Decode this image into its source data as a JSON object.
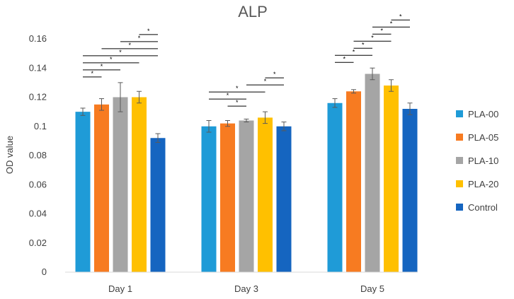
{
  "chart_data": {
    "type": "bar",
    "title": "ALP",
    "xlabel": "",
    "ylabel": "OD value",
    "ylim": [
      0,
      0.16
    ],
    "yticks": [
      0,
      0.02,
      0.04,
      0.06,
      0.08,
      0.1,
      0.12,
      0.14,
      0.16
    ],
    "ytick_labels": [
      "0",
      "0.02",
      "0.04",
      "0.06",
      "0.08",
      "0.1",
      "0.12",
      "0.14",
      "0.16"
    ],
    "grid": false,
    "legend_position": "right",
    "categories": [
      "Day 1",
      "Day 3",
      "Day 5"
    ],
    "series": [
      {
        "name": "PLA-00",
        "color": "#1f9bd7",
        "values": [
          0.11,
          0.1,
          0.116
        ],
        "errors": [
          0.0025,
          0.004,
          0.003
        ]
      },
      {
        "name": "PLA-05",
        "color": "#f77b21",
        "values": [
          0.115,
          0.102,
          0.124
        ],
        "errors": [
          0.004,
          0.002,
          0.0012
        ]
      },
      {
        "name": "PLA-10",
        "color": "#a5a5a5",
        "values": [
          0.12,
          0.104,
          0.136
        ],
        "errors": [
          0.01,
          0.001,
          0.004
        ]
      },
      {
        "name": "PLA-20",
        "color": "#ffc000",
        "values": [
          0.12,
          0.106,
          0.128
        ],
        "errors": [
          0.004,
          0.004,
          0.004
        ]
      },
      {
        "name": "Control",
        "color": "#1565c0",
        "values": [
          0.092,
          0.1,
          0.112
        ],
        "errors": [
          0.003,
          0.003,
          0.004
        ]
      }
    ],
    "significance_label": "*",
    "significance": [
      {
        "category": 0,
        "from": 0,
        "to": 1
      },
      {
        "category": 0,
        "from": 0,
        "to": 2
      },
      {
        "category": 0,
        "from": 0,
        "to": 3
      },
      {
        "category": 0,
        "from": 0,
        "to": 4
      },
      {
        "category": 0,
        "from": 1,
        "to": 4
      },
      {
        "category": 0,
        "from": 2,
        "to": 4
      },
      {
        "category": 0,
        "from": 3,
        "to": 4
      },
      {
        "category": 1,
        "from": 1,
        "to": 2
      },
      {
        "category": 1,
        "from": 0,
        "to": 2
      },
      {
        "category": 1,
        "from": 0,
        "to": 3
      },
      {
        "category": 1,
        "from": 2,
        "to": 4
      },
      {
        "category": 1,
        "from": 3,
        "to": 4
      },
      {
        "category": 2,
        "from": 0,
        "to": 1
      },
      {
        "category": 2,
        "from": 0,
        "to": 2
      },
      {
        "category": 2,
        "from": 1,
        "to": 2
      },
      {
        "category": 2,
        "from": 1,
        "to": 3
      },
      {
        "category": 2,
        "from": 2,
        "to": 3
      },
      {
        "category": 2,
        "from": 2,
        "to": 4
      },
      {
        "category": 2,
        "from": 3,
        "to": 4
      }
    ]
  }
}
